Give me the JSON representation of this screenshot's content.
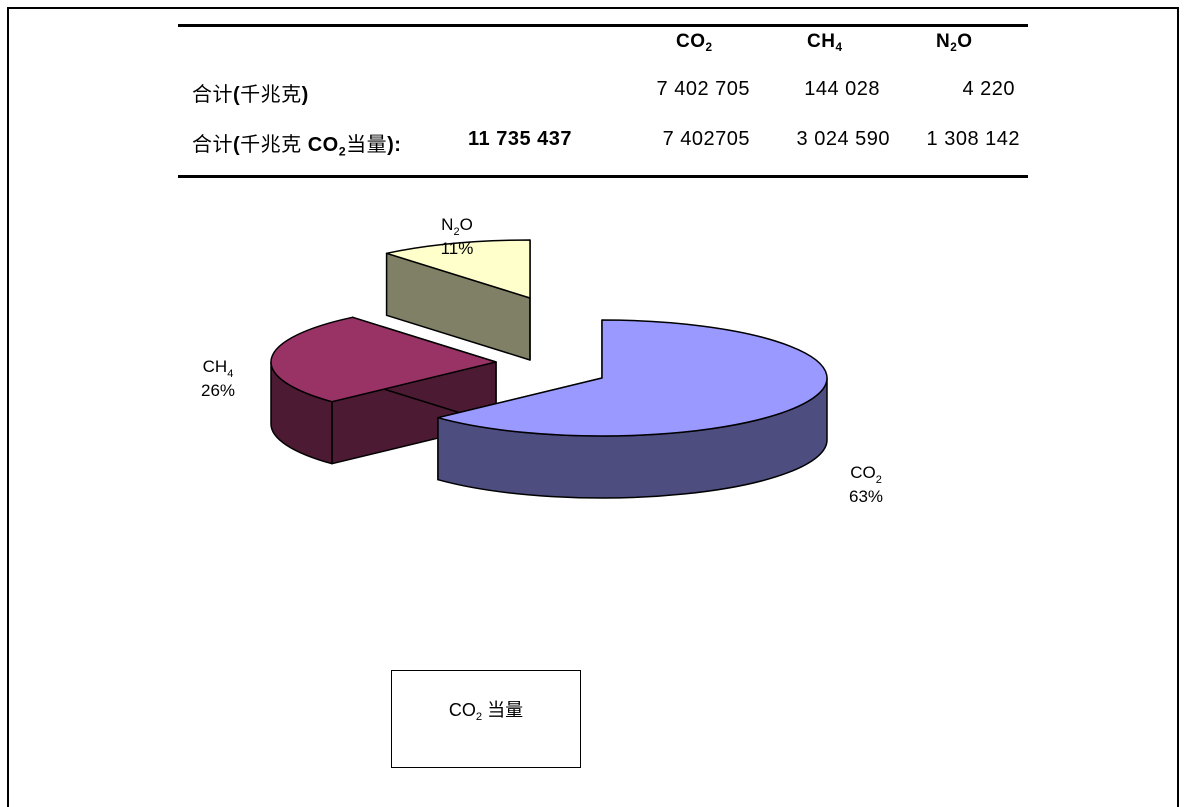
{
  "table": {
    "columns": [
      {
        "base": "CO",
        "sub": "2",
        "suffix": ""
      },
      {
        "base": "CH",
        "sub": "4",
        "suffix": ""
      },
      {
        "base": "N",
        "sub": "2",
        "suffix": "O"
      }
    ],
    "row1": {
      "label_pre": "合计",
      "label_bold": "(",
      "label_mid": "千兆克",
      "label_end": ")",
      "values": [
        "7 402 705",
        "144 028",
        "4 220"
      ]
    },
    "row2": {
      "label_pre": "合计",
      "label_bold1": "(",
      "label_mid": "千兆克 ",
      "label_co": "CO",
      "label_sub": "2",
      "label_eq": "当量",
      "label_end": "):",
      "total": "11 735 437",
      "values": [
        "7 402705",
        "3 024 590",
        "1 308 142"
      ]
    }
  },
  "chart_data": {
    "type": "pie",
    "style": "3d-exploded",
    "slices": [
      {
        "name_base": "CO",
        "name_sub": "2",
        "name_suffix": "",
        "percent": 63,
        "label": "63%",
        "color": "#9999FF",
        "side_color": "#4D4D80"
      },
      {
        "name_base": "CH",
        "name_sub": "4",
        "name_suffix": "",
        "percent": 26,
        "label": "26%",
        "color": "#993366",
        "side_color": "#4D1A33"
      },
      {
        "name_base": "N",
        "name_sub": "2",
        "name_suffix": "O",
        "percent": 11,
        "label": "11%",
        "color": "#FFFFCC",
        "side_color": "#808066"
      }
    ],
    "legend_box": {
      "base": "CO",
      "sub": "2",
      "text": " 当量"
    }
  }
}
